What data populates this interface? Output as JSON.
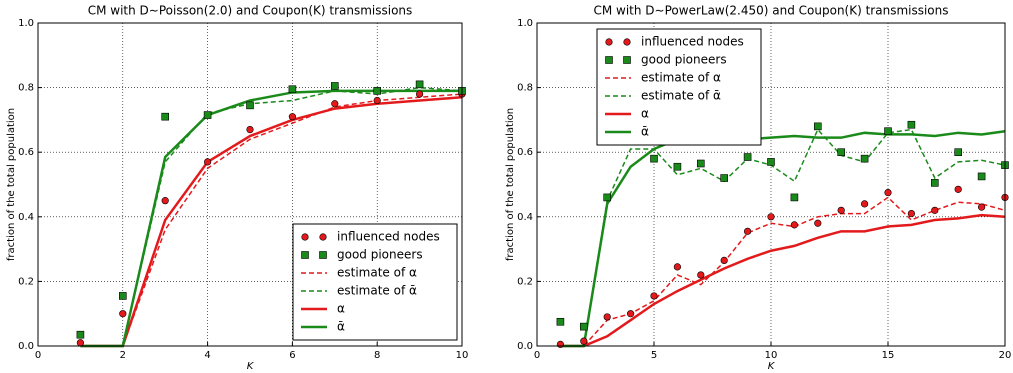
{
  "chart_data": [
    {
      "type": "line",
      "title": "CM with D∼Poisson(2.0) and Coupon(K) transmissions",
      "xlabel": "K",
      "ylabel": "fraction of the total population",
      "x": [
        1,
        2,
        3,
        4,
        5,
        6,
        7,
        8,
        9,
        10
      ],
      "xlim": [
        0,
        10
      ],
      "xticks": [
        0,
        2,
        4,
        6,
        8,
        10
      ],
      "ylim": [
        0,
        1
      ],
      "yticks": [
        {
          "value": 0,
          "label": "0.0"
        },
        {
          "value": 0.2,
          "label": "0.2"
        },
        {
          "value": 0.4,
          "label": "0.4"
        },
        {
          "value": 0.6,
          "label": "0.6"
        },
        {
          "value": 0.8,
          "label": "0.8"
        },
        {
          "value": 1,
          "label": "1.0"
        }
      ],
      "grid": true,
      "legend": "lower right",
      "series": [
        {
          "name": "influenced nodes",
          "color": "#e31a1c",
          "marker": "circle",
          "values": [
            0.01,
            0.1,
            0.45,
            0.57,
            0.67,
            0.71,
            0.75,
            0.76,
            0.78,
            0.78
          ]
        },
        {
          "name": "good pioneers",
          "color": "#1a8a1a",
          "marker": "square",
          "values": [
            0.035,
            0.155,
            0.71,
            0.715,
            0.745,
            0.795,
            0.805,
            0.79,
            0.81,
            0.79
          ]
        },
        {
          "name": "estimate of α",
          "color": "#e31a1c",
          "linestyle": "dashed",
          "values": [
            0,
            0,
            0.36,
            0.55,
            0.64,
            0.69,
            0.74,
            0.76,
            0.77,
            0.78
          ]
        },
        {
          "name": "estimate of ᾱ",
          "color": "#1a8a1a",
          "linestyle": "dashed",
          "values": [
            0,
            0,
            0.57,
            0.72,
            0.75,
            0.76,
            0.79,
            0.78,
            0.8,
            0.79
          ]
        },
        {
          "name": "α",
          "color": "#e31a1c",
          "linestyle": "solid",
          "values": [
            0,
            0,
            0.39,
            0.57,
            0.65,
            0.7,
            0.735,
            0.75,
            0.76,
            0.77
          ]
        },
        {
          "name": "ᾱ",
          "color": "#1a8a1a",
          "linestyle": "solid",
          "values": [
            0,
            0,
            0.585,
            0.715,
            0.76,
            0.785,
            0.79,
            0.79,
            0.79,
            0.79
          ]
        }
      ]
    },
    {
      "type": "line",
      "title": "CM with D∼PowerLaw(2.450) and Coupon(K) transmissions",
      "xlabel": "K",
      "ylabel": "fraction of the total population",
      "x": [
        1,
        2,
        3,
        4,
        5,
        6,
        7,
        8,
        9,
        10,
        11,
        12,
        13,
        14,
        15,
        16,
        17,
        18,
        19,
        20
      ],
      "xlim": [
        0,
        20
      ],
      "xticks": [
        0,
        5,
        10,
        15,
        20
      ],
      "ylim": [
        0,
        1
      ],
      "yticks": [
        {
          "value": 0,
          "label": "0.0"
        },
        {
          "value": 0.2,
          "label": "0.2"
        },
        {
          "value": 0.4,
          "label": "0.4"
        },
        {
          "value": 0.6,
          "label": "0.6"
        },
        {
          "value": 0.8,
          "label": "0.8"
        },
        {
          "value": 1,
          "label": "1.0"
        }
      ],
      "grid": true,
      "legend": "upper left",
      "series": [
        {
          "name": "influenced nodes",
          "color": "#e31a1c",
          "marker": "circle",
          "values": [
            0.005,
            0.015,
            0.09,
            0.1,
            0.155,
            0.245,
            0.22,
            0.265,
            0.355,
            0.4,
            0.375,
            0.38,
            0.42,
            0.44,
            0.475,
            0.41,
            0.42,
            0.485,
            0.43,
            0.46
          ]
        },
        {
          "name": "good pioneers",
          "color": "#1a8a1a",
          "marker": "square",
          "values": [
            0.075,
            0.06,
            0.46,
            0.65,
            0.58,
            0.555,
            0.565,
            0.52,
            0.585,
            0.57,
            0.46,
            0.68,
            0.6,
            0.58,
            0.665,
            0.685,
            0.505,
            0.6,
            0.525,
            0.56
          ]
        },
        {
          "name": "estimate of α",
          "color": "#e31a1c",
          "linestyle": "dashed",
          "values": [
            0,
            0,
            0.08,
            0.1,
            0.14,
            0.22,
            0.19,
            0.26,
            0.35,
            0.38,
            0.37,
            0.4,
            0.41,
            0.41,
            0.46,
            0.39,
            0.42,
            0.445,
            0.44,
            0.42
          ]
        },
        {
          "name": "estimate of ᾱ",
          "color": "#1a8a1a",
          "linestyle": "dashed",
          "values": [
            0,
            0,
            0.45,
            0.61,
            0.61,
            0.53,
            0.55,
            0.51,
            0.58,
            0.56,
            0.51,
            0.67,
            0.59,
            0.57,
            0.66,
            0.67,
            0.52,
            0.57,
            0.575,
            0.56
          ]
        },
        {
          "name": "α",
          "color": "#e31a1c",
          "linestyle": "solid",
          "values": [
            0,
            0,
            0.03,
            0.08,
            0.13,
            0.17,
            0.205,
            0.24,
            0.27,
            0.295,
            0.31,
            0.335,
            0.355,
            0.355,
            0.37,
            0.375,
            0.39,
            0.395,
            0.405,
            0.4
          ]
        },
        {
          "name": "ᾱ",
          "color": "#1a8a1a",
          "linestyle": "solid",
          "values": [
            0,
            0,
            0.44,
            0.555,
            0.61,
            0.64,
            0.65,
            0.645,
            0.64,
            0.645,
            0.65,
            0.645,
            0.645,
            0.66,
            0.655,
            0.655,
            0.65,
            0.66,
            0.655,
            0.665
          ]
        }
      ]
    }
  ]
}
